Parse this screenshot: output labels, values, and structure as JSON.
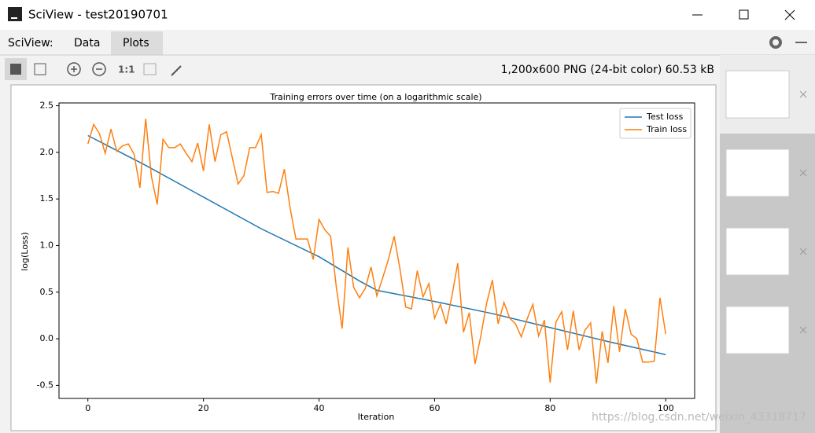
{
  "window": {
    "title": "SciView - test20190701"
  },
  "tabs": {
    "label": "SciView:",
    "items": [
      "Data",
      "Plots"
    ]
  },
  "toolbar": {
    "zoom_label": "1:1",
    "info": "1,200x600 PNG (24-bit color) 60.53 kB"
  },
  "watermark": "https://blog.csdn.net/weixin_43318717",
  "chart_data": {
    "type": "line",
    "title": "Training errors over time (on a logarithmic scale)",
    "xlabel": "Iteration",
    "ylabel": "log(Loss)",
    "series": [
      {
        "name": "Test loss",
        "color": "#1f77b4",
        "x": [
          0,
          10,
          20,
          30,
          40,
          47,
          50,
          60,
          70,
          80,
          90,
          100
        ],
        "values": [
          2.18,
          1.86,
          1.52,
          1.18,
          0.88,
          0.62,
          0.52,
          0.4,
          0.27,
          0.12,
          -0.03,
          -0.17
        ]
      },
      {
        "name": "Train loss",
        "color": "#ff7f0e",
        "x": [
          0,
          1,
          2,
          3,
          4,
          5,
          6,
          7,
          8,
          9,
          10,
          11,
          12,
          13,
          14,
          15,
          16,
          17,
          18,
          19,
          20,
          21,
          22,
          23,
          24,
          25,
          26,
          27,
          28,
          29,
          30,
          31,
          32,
          33,
          34,
          35,
          36,
          37,
          38,
          39,
          40,
          41,
          42,
          43,
          44,
          45,
          46,
          47,
          48,
          49,
          50,
          51,
          52,
          53,
          54,
          55,
          56,
          57,
          58,
          59,
          60,
          61,
          62,
          63,
          64,
          65,
          66,
          67,
          68,
          69,
          70,
          71,
          72,
          73,
          74,
          75,
          76,
          77,
          78,
          79,
          80,
          81,
          82,
          83,
          84,
          85,
          86,
          87,
          88,
          89,
          90,
          91,
          92,
          93,
          94,
          95,
          96,
          97,
          98,
          99,
          100
        ],
        "values": [
          2.09,
          2.3,
          2.2,
          1.99,
          2.25,
          2.01,
          2.07,
          2.09,
          1.98,
          1.62,
          2.36,
          1.74,
          1.44,
          2.14,
          2.05,
          2.05,
          2.09,
          1.99,
          1.9,
          2.1,
          1.8,
          2.3,
          1.9,
          2.19,
          2.22,
          1.94,
          1.66,
          1.75,
          2.05,
          2.05,
          2.19,
          1.57,
          1.58,
          1.56,
          1.82,
          1.4,
          1.07,
          1.07,
          1.07,
          0.85,
          1.28,
          1.17,
          1.1,
          0.55,
          0.11,
          0.98,
          0.55,
          0.44,
          0.54,
          0.77,
          0.46,
          0.65,
          0.85,
          1.1,
          0.75,
          0.34,
          0.32,
          0.73,
          0.45,
          0.59,
          0.22,
          0.37,
          0.16,
          0.46,
          0.81,
          0.07,
          0.28,
          -0.27,
          0.03,
          0.38,
          0.63,
          0.16,
          0.39,
          0.22,
          0.16,
          0.02,
          0.21,
          0.37,
          0.03,
          0.2,
          -0.47,
          0.18,
          0.29,
          -0.12,
          0.3,
          -0.12,
          0.09,
          0.17,
          -0.48,
          0.08,
          -0.26,
          0.35,
          -0.14,
          0.32,
          0.05,
          0.0,
          -0.25,
          -0.25,
          -0.24,
          0.44,
          0.05
        ]
      }
    ],
    "xlim": [
      -5,
      105
    ],
    "ylim": [
      -0.64,
      2.53
    ],
    "xticks": [
      0,
      20,
      40,
      60,
      80,
      100
    ],
    "yticks": [
      -0.5,
      {
        "value": 0,
        "label": "0.0"
      },
      0.5,
      {
        "value": 1,
        "label": "1.0"
      },
      1.5,
      {
        "value": 2,
        "label": "2.0"
      },
      2.5
    ],
    "legend": "upper right"
  }
}
